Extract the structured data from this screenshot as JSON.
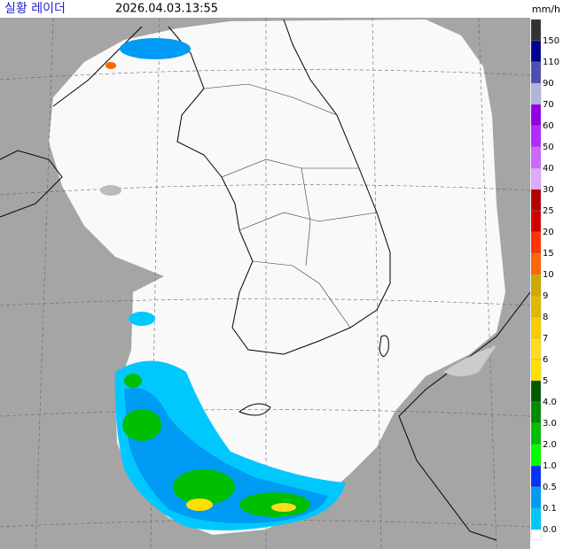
{
  "header": {
    "title": "실황 레이더",
    "timestamp": "2026.04.03.13:55"
  },
  "legend": {
    "unit": "mm/h",
    "labels": [
      "150",
      "110",
      "90",
      "70",
      "60",
      "50",
      "40",
      "30",
      "25",
      "20",
      "15",
      "10",
      "9",
      "8",
      "7",
      "6",
      "5",
      "4.0",
      "3.0",
      "2.0",
      "1.0",
      "0.5",
      "0.1",
      "0.0"
    ],
    "colors": [
      "#333333",
      "#000390",
      "#4c4eb1",
      "#b3b4de",
      "#9300e4",
      "#b329ff",
      "#c969ff",
      "#dfa9ff",
      "#b40000",
      "#d20000",
      "#ff3200",
      "#ff6600",
      "#ccaa00",
      "#e0b900",
      "#f9cd00",
      "#ffdc1f",
      "#ffe100",
      "#005a00",
      "#008c00",
      "#00be00",
      "#00ff00",
      "#0033f5",
      "#009bf5",
      "#00c8ff",
      "#ffffff"
    ]
  }
}
